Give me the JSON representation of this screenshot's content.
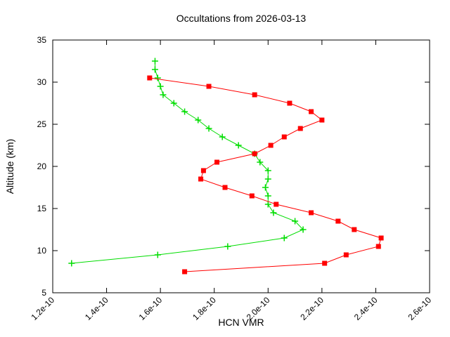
{
  "window": {
    "background": "#ffffff",
    "frame_color": "#000000"
  },
  "chart_data": {
    "type": "line",
    "title": "Occultations from 2026-03-13",
    "xlabel": "HCN VMR",
    "ylabel": "Altitude (km)",
    "xlim": [
      1.2e-10,
      2.6e-10
    ],
    "ylim": [
      5,
      35
    ],
    "xtick_labels": [
      "1.2e-10",
      "1.4e-10",
      "1.6e-10",
      "1.8e-10",
      "2.0e-10",
      "2.2e-10",
      "2.4e-10",
      "2.6e-10"
    ],
    "xtick_values": [
      1.2e-10,
      1.4e-10,
      1.6e-10,
      1.8e-10,
      2e-10,
      2.2e-10,
      2.4e-10,
      2.6e-10
    ],
    "ytick_labels": [
      "5",
      "10",
      "15",
      "20",
      "25",
      "30",
      "35"
    ],
    "ytick_values": [
      5,
      10,
      15,
      20,
      25,
      30,
      35
    ],
    "grid": false,
    "legend": "none",
    "ticks_mirrored": true,
    "xtick_rotation_deg": -45,
    "series": [
      {
        "name": "occultation-profile-red",
        "color": "#ff0000",
        "marker": "square",
        "points_vmr_altitude": [
          [
            1.69e-10,
            7.5
          ],
          [
            2.21e-10,
            8.5
          ],
          [
            2.29e-10,
            9.5
          ],
          [
            2.41e-10,
            10.5
          ],
          [
            2.42e-10,
            11.5
          ],
          [
            2.32e-10,
            12.5
          ],
          [
            2.26e-10,
            13.5
          ],
          [
            2.16e-10,
            14.5
          ],
          [
            2.03e-10,
            15.5
          ],
          [
            1.94e-10,
            16.5
          ],
          [
            1.84e-10,
            17.5
          ],
          [
            1.75e-10,
            18.5
          ],
          [
            1.76e-10,
            19.5
          ],
          [
            1.81e-10,
            20.5
          ],
          [
            1.95e-10,
            21.5
          ],
          [
            2.01e-10,
            22.5
          ],
          [
            2.06e-10,
            23.5
          ],
          [
            2.12e-10,
            24.5
          ],
          [
            2.2e-10,
            25.5
          ],
          [
            2.16e-10,
            26.5
          ],
          [
            2.08e-10,
            27.5
          ],
          [
            1.95e-10,
            28.5
          ],
          [
            1.78e-10,
            29.5
          ],
          [
            1.56e-10,
            30.5
          ]
        ]
      },
      {
        "name": "occultation-profile-green",
        "color": "#00dd00",
        "marker": "plus",
        "points_vmr_altitude": [
          [
            1.27e-10,
            8.5
          ],
          [
            1.59e-10,
            9.5
          ],
          [
            1.85e-10,
            10.5
          ],
          [
            2.06e-10,
            11.5
          ],
          [
            2.13e-10,
            12.5
          ],
          [
            2.1e-10,
            13.5
          ],
          [
            2.02e-10,
            14.5
          ],
          [
            2e-10,
            15.5
          ],
          [
            2e-10,
            16.5
          ],
          [
            1.99e-10,
            17.5
          ],
          [
            2e-10,
            18.5
          ],
          [
            2e-10,
            19.5
          ],
          [
            1.97e-10,
            20.5
          ],
          [
            1.95e-10,
            21.5
          ],
          [
            1.89e-10,
            22.5
          ],
          [
            1.83e-10,
            23.5
          ],
          [
            1.78e-10,
            24.5
          ],
          [
            1.74e-10,
            25.5
          ],
          [
            1.69e-10,
            26.5
          ],
          [
            1.65e-10,
            27.5
          ],
          [
            1.61e-10,
            28.5
          ],
          [
            1.6e-10,
            29.5
          ],
          [
            1.59e-10,
            30.5
          ],
          [
            1.58e-10,
            31.5
          ],
          [
            1.58e-10,
            32.5
          ]
        ]
      }
    ]
  }
}
